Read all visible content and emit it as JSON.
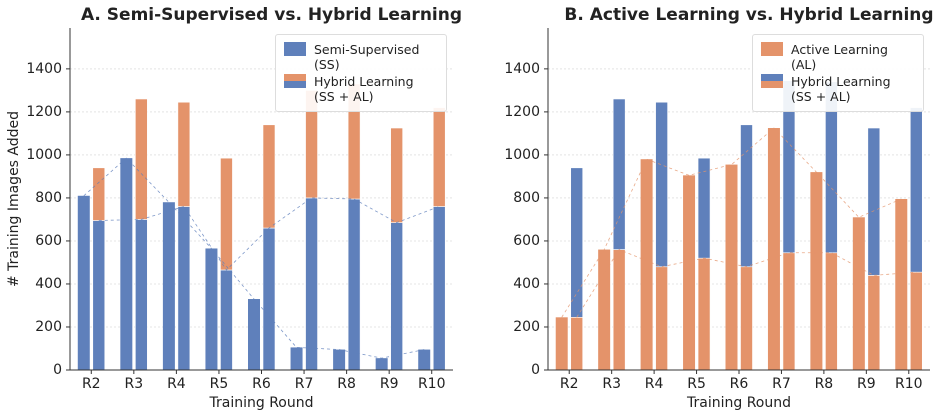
{
  "chart_data": [
    {
      "type": "bar",
      "title": "A. Semi-Supervised vs. Hybrid Learning",
      "xlabel": "Training Round",
      "ylabel": "# Training Images Added",
      "categories": [
        "R2",
        "R3",
        "R4",
        "R5",
        "R6",
        "R7",
        "R8",
        "R9",
        "R10"
      ],
      "series": [
        {
          "name": "Semi-Supervised (SS)",
          "color": "#5f80bb",
          "values": [
            810,
            985,
            780,
            565,
            330,
            105,
            95,
            55,
            95
          ]
        },
        {
          "name": "Hybrid Learning (SS + AL)",
          "segments": [
            {
              "color": "#5f80bb",
              "values": [
                695,
                700,
                760,
                465,
                660,
                800,
                795,
                685,
                760
              ]
            },
            {
              "color": "#e4936a",
              "values": [
                245,
                560,
                485,
                520,
                480,
                500,
                535,
                440,
                460
              ]
            }
          ]
        }
      ],
      "ylim": [
        0,
        1590
      ],
      "yticks": [
        0,
        200,
        400,
        600,
        800,
        1000,
        1200,
        1400
      ],
      "grid": true,
      "dashed_lines": true,
      "legend": "upper right"
    },
    {
      "type": "bar",
      "title": "B. Active Learning vs. Hybrid Learning",
      "xlabel": "Training Round",
      "categories": [
        "R2",
        "R3",
        "R4",
        "R5",
        "R6",
        "R7",
        "R8",
        "R9",
        "R10"
      ],
      "series": [
        {
          "name": "Active Learning (AL)",
          "color": "#e4936a",
          "values": [
            245,
            560,
            980,
            905,
            955,
            1125,
            920,
            710,
            795
          ]
        },
        {
          "name": "Hybrid Learning (SS + AL)",
          "segments": [
            {
              "color": "#e4936a",
              "values": [
                245,
                560,
                480,
                520,
                480,
                545,
                545,
                440,
                455
              ]
            },
            {
              "color": "#5f80bb",
              "values": [
                695,
                700,
                765,
                465,
                660,
                800,
                795,
                685,
                765
              ]
            }
          ]
        }
      ],
      "ylim": [
        0,
        1590
      ],
      "yticks": [
        0,
        200,
        400,
        600,
        800,
        1000,
        1200,
        1400
      ],
      "grid": true,
      "dashed_lines": true,
      "legend": "upper right"
    }
  ]
}
